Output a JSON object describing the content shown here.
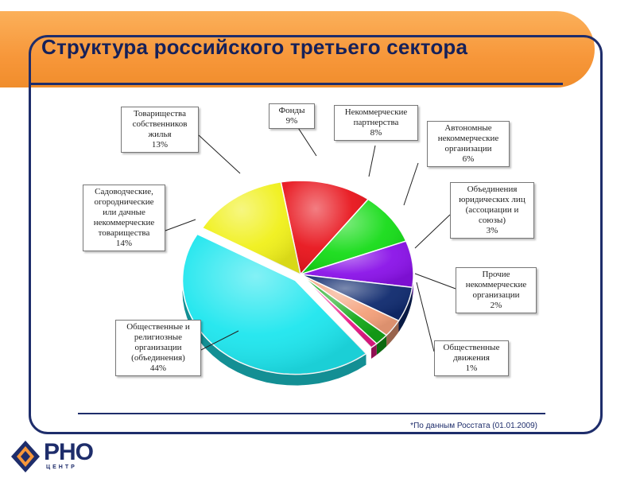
{
  "page": {
    "title": "Структура российского третьего сектора",
    "source_note": "*По данным Росстата (01.01.2009)",
    "logo_text": "РНО",
    "logo_subtext": "ЦЕНТР"
  },
  "chart_data": {
    "type": "pie",
    "title": "Структура российского третьего сектора",
    "slices": [
      {
        "label_lines": [
          "Товарищества",
          "собственников",
          "жилья",
          "13%"
        ],
        "value": 13,
        "color": "#e8141c"
      },
      {
        "label_lines": [
          "Фонды",
          "9%"
        ],
        "value": 9,
        "color": "#16dc18"
      },
      {
        "label_lines": [
          "Некоммерческие",
          "партнерства",
          "8%"
        ],
        "value": 8,
        "color": "#8a12e8"
      },
      {
        "label_lines": [
          "Автономные",
          "некоммерческие",
          "организации",
          "6%"
        ],
        "value": 6,
        "color": "#0f2a6e"
      },
      {
        "label_lines": [
          "Объединения",
          "юридических лиц",
          "(ассоциации и",
          "союзы)",
          "3%"
        ],
        "value": 3,
        "color": "#f4a07a"
      },
      {
        "label_lines": [
          "Прочие",
          "некоммерческие",
          "организации",
          "2%"
        ],
        "value": 2,
        "color": "#14a818"
      },
      {
        "label_lines": [
          "Общественные",
          "движения",
          "1%"
        ],
        "value": 1,
        "color": "#e81a86"
      },
      {
        "label_lines": [
          "Общественные и",
          "религиозные",
          "организации",
          "(объединения)",
          "44%"
        ],
        "value": 44,
        "color": "#1ee6ee"
      },
      {
        "label_lines": [
          "Садоводческие,",
          "огороднические",
          "или дачные",
          "некоммерческие",
          "товарищества",
          "14%"
        ],
        "value": 14,
        "color": "#f0f01a"
      }
    ]
  }
}
